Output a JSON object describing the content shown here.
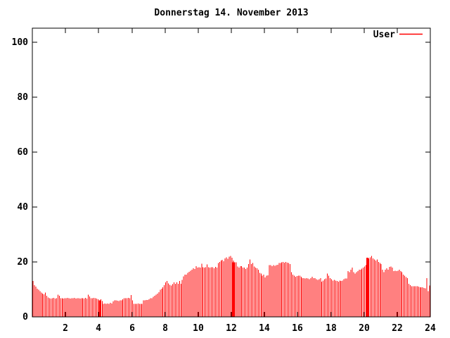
{
  "window": {
    "background_color": "#ffffff"
  },
  "chart_data": {
    "type": "bar",
    "style": "impulses",
    "title": "Donnerstag 14. November 2013",
    "legend": {
      "label": "User",
      "position": "top-right"
    },
    "series_color": "#ff0000",
    "axis_color": "#000000",
    "background_color": "#ffffff",
    "grid": false,
    "xlabel": "",
    "ylabel": "",
    "x_unit": "hour-of-day",
    "sample_interval_minutes": 5,
    "xlim": [
      0,
      24
    ],
    "ylim": [
      0,
      105
    ],
    "xticks": [
      2,
      4,
      6,
      8,
      10,
      12,
      14,
      16,
      18,
      20,
      22,
      24
    ],
    "yticks": [
      0,
      20,
      40,
      60,
      80,
      100
    ],
    "values": [
      13.0,
      11.5,
      11.0,
      10.2,
      9.8,
      9.4,
      8.8,
      8.4,
      8.2,
      8.8,
      7.7,
      7.0,
      6.8,
      6.6,
      6.8,
      6.9,
      6.6,
      6.8,
      8.1,
      7.7,
      6.8,
      6.8,
      6.6,
      6.8,
      6.8,
      6.9,
      6.8,
      6.6,
      6.8,
      6.8,
      6.9,
      6.6,
      6.8,
      6.8,
      6.6,
      6.8,
      6.8,
      6.6,
      6.9,
      6.6,
      8.1,
      7.4,
      6.8,
      6.8,
      6.9,
      6.8,
      6.6,
      6.4,
      6.0,
      6.4,
      5.7,
      4.7,
      4.9,
      4.7,
      4.9,
      4.8,
      5.1,
      4.9,
      5.6,
      6.0,
      6.0,
      5.9,
      5.8,
      6.0,
      6.0,
      6.4,
      6.8,
      6.8,
      6.8,
      6.9,
      6.8,
      7.9,
      6.0,
      4.7,
      4.7,
      4.8,
      4.9,
      4.8,
      4.7,
      4.7,
      6.0,
      6.0,
      6.1,
      6.2,
      6.4,
      6.8,
      6.8,
      7.3,
      7.7,
      8.1,
      8.5,
      9.0,
      9.8,
      10.2,
      10.7,
      11.5,
      12.6,
      13.1,
      12.2,
      11.7,
      11.4,
      11.9,
      12.5,
      12.1,
      12.5,
      12.1,
      13.0,
      12.1,
      13.4,
      14.7,
      15.4,
      15.4,
      16.0,
      16.4,
      16.8,
      17.2,
      17.7,
      17.4,
      18.5,
      17.9,
      18.1,
      17.9,
      19.4,
      18.1,
      17.9,
      18.0,
      19.1,
      18.1,
      17.9,
      18.0,
      18.1,
      17.7,
      18.2,
      17.9,
      19.6,
      20.0,
      20.5,
      20.7,
      20.2,
      21.3,
      21.7,
      21.1,
      21.9,
      22.1,
      21.5,
      20.5,
      19.8,
      19.8,
      18.3,
      17.9,
      18.5,
      18.5,
      17.9,
      17.9,
      17.4,
      17.9,
      19.2,
      20.9,
      19.2,
      19.6,
      18.3,
      17.9,
      17.7,
      17.1,
      16.0,
      15.8,
      15.0,
      15.4,
      14.3,
      15.0,
      15.1,
      18.8,
      18.8,
      18.5,
      18.8,
      18.6,
      18.8,
      19.0,
      19.6,
      19.6,
      19.8,
      20.0,
      19.7,
      20.0,
      19.7,
      19.6,
      19.2,
      16.2,
      15.4,
      15.0,
      14.6,
      14.8,
      15.0,
      15.0,
      14.6,
      14.1,
      14.1,
      14.0,
      14.1,
      14.0,
      13.7,
      14.1,
      14.6,
      14.1,
      14.1,
      13.7,
      13.4,
      13.7,
      14.1,
      12.8,
      13.2,
      13.7,
      14.0,
      15.8,
      15.0,
      14.1,
      13.7,
      13.2,
      13.4,
      13.2,
      13.1,
      12.8,
      13.2,
      13.1,
      13.2,
      13.7,
      14.0,
      14.0,
      16.7,
      16.2,
      17.1,
      17.9,
      16.2,
      15.8,
      16.2,
      16.7,
      17.1,
      17.1,
      17.5,
      17.9,
      18.3,
      18.8,
      21.5,
      21.3,
      21.7,
      22.1,
      21.3,
      20.9,
      20.5,
      20.9,
      20.0,
      19.6,
      19.2,
      17.1,
      16.2,
      17.1,
      17.7,
      17.1,
      18.2,
      18.3,
      17.9,
      16.7,
      16.8,
      16.7,
      16.8,
      17.1,
      16.7,
      16.2,
      15.4,
      15.0,
      14.5,
      14.1,
      12.0,
      11.5,
      11.1,
      11.1,
      11.1,
      11.1,
      11.2,
      11.0,
      10.8,
      10.7,
      10.7,
      10.5,
      10.4,
      14.1,
      9.4,
      11.4
    ],
    "thick_bars": [
      {
        "x": 4.07,
        "y": 6.0
      },
      {
        "x": 12.12,
        "y": 19.9
      },
      {
        "x": 20.2,
        "y": 21.5
      }
    ]
  }
}
